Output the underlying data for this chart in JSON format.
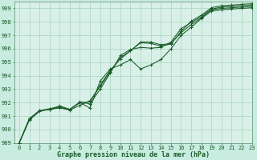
{
  "bg_color": "#c8ece0",
  "plot_bg_color": "#d8f0e8",
  "grid_color": "#b0d8c8",
  "line_color": "#1a5c28",
  "xlabel": "Graphe pression niveau de la mer (hPa)",
  "ylim": [
    989,
    999.5
  ],
  "xlim": [
    -0.5,
    23
  ],
  "yticks": [
    989,
    990,
    991,
    992,
    993,
    994,
    995,
    996,
    997,
    998,
    999
  ],
  "xticks": [
    0,
    1,
    2,
    3,
    4,
    5,
    6,
    7,
    8,
    9,
    10,
    11,
    12,
    13,
    14,
    15,
    16,
    17,
    18,
    19,
    20,
    21,
    22,
    23
  ],
  "series": [
    [
      989.0,
      990.8,
      991.4,
      991.55,
      991.7,
      991.5,
      992.0,
      992.05,
      993.3,
      994.4,
      995.25,
      995.85,
      996.45,
      996.4,
      996.2,
      996.35,
      997.3,
      998.05,
      998.5,
      999.05,
      999.2,
      999.25,
      999.3,
      999.35
    ],
    [
      989.0,
      990.75,
      991.4,
      991.5,
      991.75,
      991.5,
      992.05,
      991.9,
      993.0,
      994.2,
      995.5,
      995.95,
      996.1,
      996.05,
      996.1,
      996.5,
      997.5,
      997.95,
      998.4,
      998.95,
      999.1,
      999.15,
      999.2,
      999.25
    ],
    [
      989.0,
      990.7,
      991.35,
      991.5,
      991.6,
      991.45,
      991.8,
      992.15,
      993.2,
      994.3,
      995.35,
      995.85,
      996.5,
      996.5,
      996.3,
      996.4,
      997.2,
      997.8,
      998.3,
      998.9,
      999.0,
      999.05,
      999.1,
      999.15
    ],
    [
      989.0,
      990.8,
      991.4,
      991.5,
      991.65,
      991.5,
      992.0,
      991.6,
      993.6,
      994.5,
      994.8,
      995.2,
      994.5,
      994.8,
      995.2,
      996.0,
      997.0,
      997.6,
      998.25,
      998.8,
      998.9,
      998.95,
      999.0,
      999.05
    ]
  ],
  "tick_fontsize": 5,
  "xlabel_fontsize": 6,
  "tick_color": "#1a5c28",
  "spine_color": "#5a8a6a"
}
